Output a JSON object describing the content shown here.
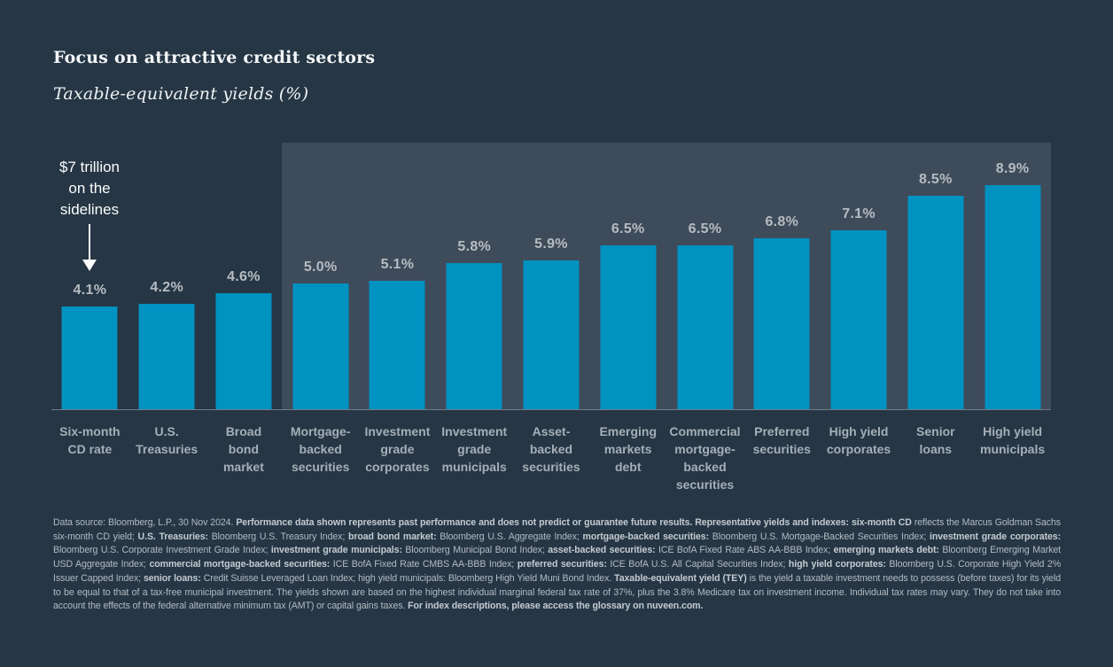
{
  "header": {
    "title": "Focus on attractive credit sectors",
    "subtitle": "Taxable-equivalent yields (%)"
  },
  "chart_data": {
    "type": "bar",
    "title": "Focus on attractive credit sectors",
    "subtitle": "Taxable-equivalent yields (%)",
    "ylabel": "Taxable-equivalent yield (%)",
    "categories": [
      "Six-month CD rate",
      "U.S. Treasuries",
      "Broad bond market",
      "Mortgage-backed securities",
      "Investment grade corporates",
      "Investment grade municipals",
      "Asset-backed securities",
      "Emerging markets debt",
      "Commercial mortgage-backed securities",
      "Preferred securities",
      "High yield corporates",
      "Senior loans",
      "High yield municipals"
    ],
    "categories_wrapped": [
      [
        "Six-month",
        "CD rate"
      ],
      [
        "U.S.",
        "Treasuries"
      ],
      [
        "Broad",
        "bond",
        "market"
      ],
      [
        "Mortgage-",
        "backed",
        "securities"
      ],
      [
        "Investment",
        "grade",
        "corporates"
      ],
      [
        "Investment",
        "grade",
        "municipals"
      ],
      [
        "Asset-",
        "backed",
        "securities"
      ],
      [
        "Emerging",
        "markets",
        "debt"
      ],
      [
        "Commercial",
        "mortgage-",
        "backed",
        "securities"
      ],
      [
        "Preferred",
        "securities"
      ],
      [
        "High yield",
        "corporates"
      ],
      [
        "Senior",
        "loans"
      ],
      [
        "High yield",
        "municipals"
      ]
    ],
    "values": [
      4.1,
      4.2,
      4.6,
      5.0,
      5.1,
      5.8,
      5.9,
      6.5,
      6.5,
      6.8,
      7.1,
      8.5,
      8.9
    ],
    "value_labels": [
      "4.1%",
      "4.2%",
      "4.6%",
      "5.0%",
      "5.1%",
      "5.8%",
      "5.9%",
      "6.5%",
      "6.5%",
      "6.8%",
      "7.1%",
      "8.5%",
      "8.9%"
    ],
    "annotation": {
      "text_lines": [
        "$7 trillion",
        "on the",
        "sidelines"
      ],
      "points_to": "Six-month CD rate"
    },
    "highlight_start_index": 3,
    "ylim": [
      0,
      10.6
    ],
    "grid": false,
    "legend": false,
    "colors": {
      "bar": "#0092c1",
      "background": "#263645",
      "highlight_panel": "#3e4b5a",
      "value_label": "#b6bcc2",
      "category_label": "#a6afb7",
      "baseline": "#7e8993"
    }
  },
  "footnote": {
    "segments": [
      {
        "text": "Data source: Bloomberg, L.P., 30 Nov 2024. ",
        "bold": false
      },
      {
        "text": "Performance data shown represents past performance and does not predict or guarantee future results. Representative yields and indexes: six-month CD",
        "bold": true
      },
      {
        "text": " reflects the Marcus Goldman Sachs six-month CD yield; ",
        "bold": false
      },
      {
        "text": "U.S. Treasuries:",
        "bold": true
      },
      {
        "text": " Bloomberg U.S. Treasury Index; ",
        "bold": false
      },
      {
        "text": "broad bond market:",
        "bold": true
      },
      {
        "text": " Bloomberg U.S. Aggregate Index; ",
        "bold": false
      },
      {
        "text": "mortgage-backed securities:",
        "bold": true
      },
      {
        "text": " Bloomberg U.S. Mortgage-Backed Securities Index; ",
        "bold": false
      },
      {
        "text": "investment grade corporates:",
        "bold": true
      },
      {
        "text": " Bloomberg U.S. Corporate Investment Grade Index; ",
        "bold": false
      },
      {
        "text": "investment grade municipals:",
        "bold": true
      },
      {
        "text": " Bloomberg Municipal Bond Index; ",
        "bold": false
      },
      {
        "text": "asset-backed securities:",
        "bold": true
      },
      {
        "text": " ICE BofA Fixed Rate ABS AA-BBB Index; ",
        "bold": false
      },
      {
        "text": "emerging markets debt:",
        "bold": true
      },
      {
        "text": " Bloomberg Emerging Market USD Aggregate Index; ",
        "bold": false
      },
      {
        "text": "commercial mortgage-backed securities:",
        "bold": true
      },
      {
        "text": " ICE BofA Fixed Rate CMBS AA-BBB Index; ",
        "bold": false
      },
      {
        "text": "preferred securities:",
        "bold": true
      },
      {
        "text": " ICE BofA U.S. All Capital Securities Index; ",
        "bold": false
      },
      {
        "text": "high yield corporates:",
        "bold": true
      },
      {
        "text": " Bloomberg U.S. Corporate High Yield 2% Issuer Capped Index; ",
        "bold": false
      },
      {
        "text": "senior loans:",
        "bold": true
      },
      {
        "text": " Credit Suisse Leveraged Loan Index; high yield municipals: Bloomberg High Yield Muni Bond Index. ",
        "bold": false
      },
      {
        "text": "Taxable-equivalent yield (TEY)",
        "bold": true
      },
      {
        "text": " is the yield a taxable investment needs to possess (before taxes) for its yield to be equal to that of a tax-free municipal investment. The yields shown are based on the highest individual marginal federal tax rate of 37%, plus the 3.8% Medicare tax on investment income. Individual tax rates may vary. They do not take into account the effects of the federal alternative minimum tax (AMT) or capital gains taxes. ",
        "bold": false
      },
      {
        "text": "For index descriptions, please access the glossary on nuveen.com.",
        "bold": true
      }
    ]
  }
}
